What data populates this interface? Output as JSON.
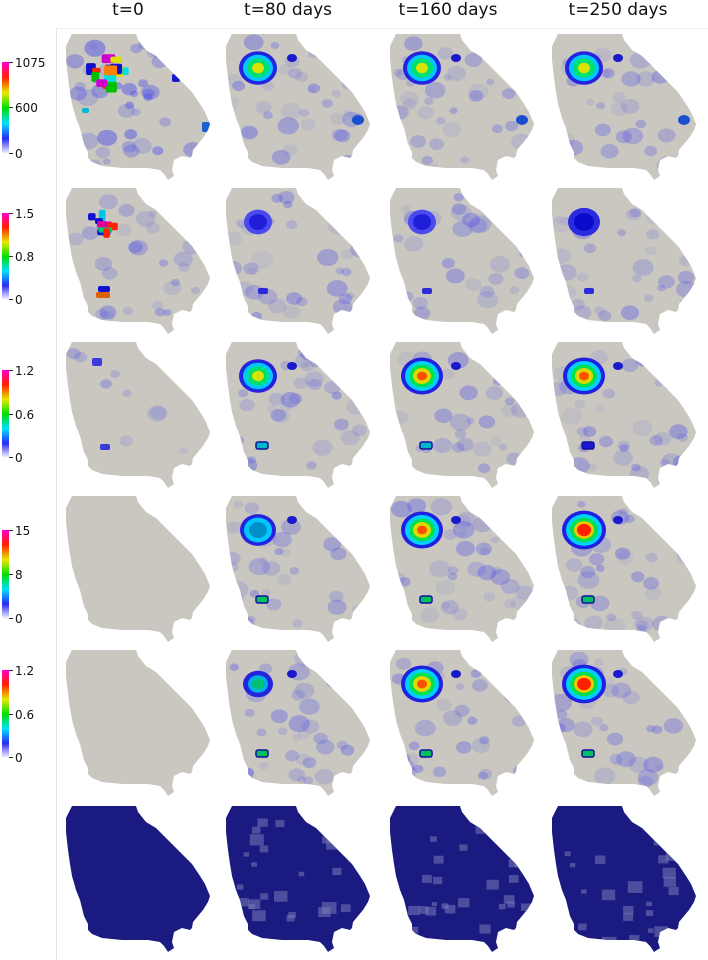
{
  "columns": [
    {
      "label": "t=0"
    },
    {
      "label": "t=80 days"
    },
    {
      "label": "t=160 days"
    },
    {
      "label": "t=250 days"
    }
  ],
  "colorbars": [
    {
      "ticks": [
        "1075",
        "600",
        "0"
      ]
    },
    {
      "ticks": [
        "1.5",
        "0.8",
        "0"
      ]
    },
    {
      "ticks": [
        "1.2",
        "0.6",
        "0"
      ]
    },
    {
      "ticks": [
        "15",
        "8",
        "0"
      ]
    },
    {
      "ticks": [
        "1.2",
        "0.6",
        "0"
      ]
    },
    {
      "ticks": []
    }
  ],
  "colors": {
    "background_map": "#c9c7bf",
    "mesh": "#1a1a80",
    "colormap": [
      "#ffffff",
      "#2a2af0",
      "#00e0ff",
      "#00e000",
      "#e8e800",
      "#ff2000",
      "#ff00d0"
    ]
  }
}
